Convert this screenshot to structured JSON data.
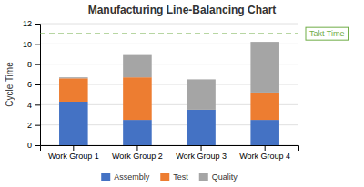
{
  "chart_data": {
    "type": "bar",
    "stacked": true,
    "title": "Manufacturing Line-Balancing Chart",
    "ylabel": "Cycle Time",
    "categories": [
      "Work Group 1",
      "Work Group 2",
      "Work Group 3",
      "Work Group 4"
    ],
    "series": [
      {
        "name": "Assembly",
        "color": "#4472C4",
        "values": [
          4.3,
          2.5,
          3.5,
          2.5
        ]
      },
      {
        "name": "Test",
        "color": "#ED7D31",
        "values": [
          2.3,
          4.2,
          0.0,
          2.7
        ]
      },
      {
        "name": "Quality",
        "color": "#A5A5A5",
        "values": [
          0.1,
          2.2,
          3.0,
          5.0
        ]
      }
    ],
    "annotations": [
      {
        "label": "Takt Time",
        "value": 11,
        "color": "#70AD47",
        "line_style": "dashed"
      }
    ],
    "ylim": [
      0,
      12
    ],
    "yticks": [
      0,
      2,
      4,
      6,
      8,
      10,
      12
    ],
    "grid": true,
    "legend": "bottom"
  }
}
